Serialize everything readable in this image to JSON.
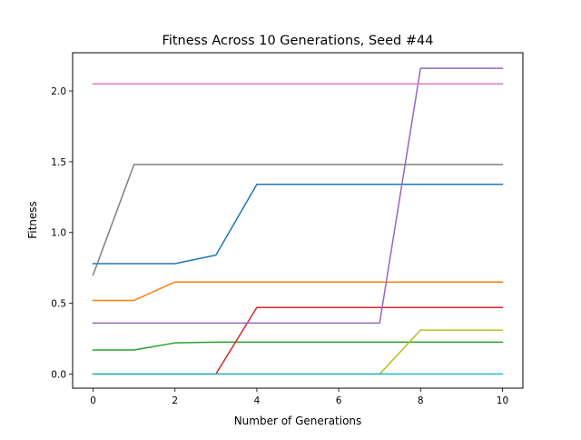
{
  "chart_data": {
    "type": "line",
    "title": "Fitness Across 10 Generations, Seed #44",
    "xlabel": "Number of Generations",
    "ylabel": "Fitness",
    "xlim": [
      -0.5,
      10.5
    ],
    "ylim": [
      -0.1,
      2.27
    ],
    "xticks": [
      0,
      2,
      4,
      6,
      8,
      10
    ],
    "xtick_labels": [
      "0",
      "2",
      "4",
      "6",
      "8",
      "10"
    ],
    "yticks": [
      0.0,
      0.5,
      1.0,
      1.5,
      2.0
    ],
    "ytick_labels": [
      "0.0",
      "0.5",
      "1.0",
      "1.5",
      "2.0"
    ],
    "grid": false,
    "legend": "none",
    "x": [
      0,
      1,
      2,
      3,
      4,
      5,
      6,
      7,
      8,
      9,
      10
    ],
    "series": [
      {
        "color": "#1f77b4",
        "values": [
          0.78,
          0.78,
          0.78,
          0.84,
          1.34,
          1.34,
          1.34,
          1.34,
          1.34,
          1.34,
          1.34
        ]
      },
      {
        "color": "#ff7f0e",
        "values": [
          0.52,
          0.52,
          0.65,
          0.65,
          0.65,
          0.65,
          0.65,
          0.65,
          0.65,
          0.65,
          0.65
        ]
      },
      {
        "color": "#2ca02c",
        "values": [
          0.17,
          0.17,
          0.22,
          0.225,
          0.225,
          0.225,
          0.225,
          0.225,
          0.225,
          0.225,
          0.225
        ]
      },
      {
        "color": "#d62728",
        "values": [
          0.0,
          0.0,
          0.0,
          0.0,
          0.47,
          0.47,
          0.47,
          0.47,
          0.47,
          0.47,
          0.47
        ]
      },
      {
        "color": "#9467bd",
        "values": [
          0.36,
          0.36,
          0.36,
          0.36,
          0.36,
          0.36,
          0.36,
          0.36,
          2.16,
          2.16,
          2.16
        ]
      },
      {
        "color": "#e377c2",
        "values": [
          2.05,
          2.05,
          2.05,
          2.05,
          2.05,
          2.05,
          2.05,
          2.05,
          2.05,
          2.05,
          2.05
        ]
      },
      {
        "color": "#7f7f7f",
        "values": [
          0.7,
          1.48,
          1.48,
          1.48,
          1.48,
          1.48,
          1.48,
          1.48,
          1.48,
          1.48,
          1.48
        ]
      },
      {
        "color": "#bcbd22",
        "values": [
          0.0,
          0.0,
          0.0,
          0.0,
          0.0,
          0.0,
          0.0,
          0.0,
          0.31,
          0.31,
          0.31
        ]
      },
      {
        "color": "#17becf",
        "values": [
          0.0,
          0.0,
          0.0,
          0.0,
          0.0,
          0.0,
          0.0,
          0.0,
          0.0,
          0.0,
          0.0
        ]
      }
    ]
  }
}
